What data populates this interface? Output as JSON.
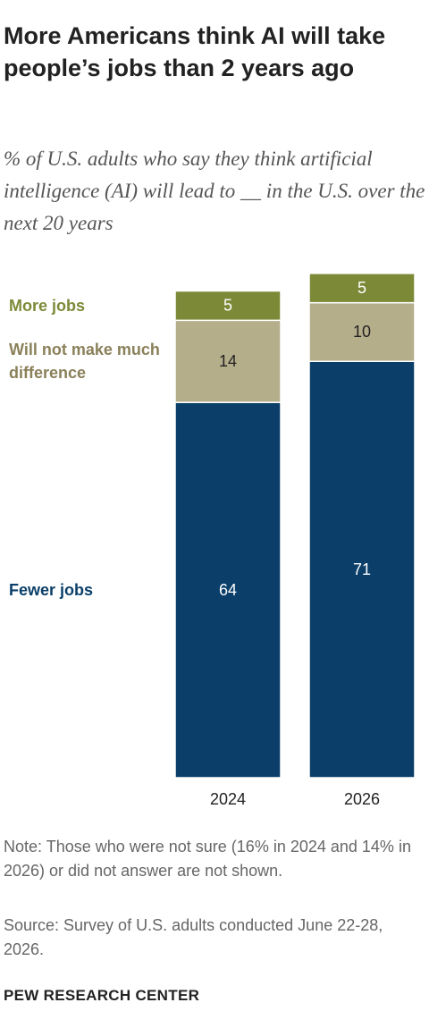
{
  "chart_data": {
    "type": "stacked-bar",
    "title": "More Americans think AI will take people’s jobs than 2 years ago",
    "subtitle": "% of U.S. adults who say they think artificial intelligence (AI) will lead to __ in the U.S. over the next 20 years",
    "categories": [
      "2024",
      "2026"
    ],
    "series": [
      {
        "name": "Fewer jobs",
        "color": "#0b3f69",
        "values": [
          64,
          71
        ]
      },
      {
        "name": "Will not make much difference",
        "color": "#b5ae8b",
        "values": [
          14,
          10
        ]
      },
      {
        "name": "More jobs",
        "color": "#7c8a38",
        "values": [
          5,
          5
        ]
      }
    ],
    "note": "Note: Those who were not sure (16% in 2024 and 14% in 2026) or did not answer are not shown.",
    "source": "Source: Survey of U.S. adults conducted June 22-28, 2026.",
    "footer": "PEW RESEARCH CENTER"
  }
}
